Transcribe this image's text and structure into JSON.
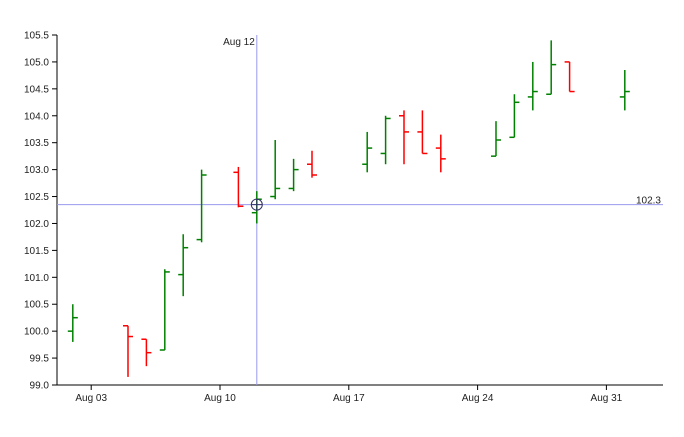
{
  "chart_data": {
    "type": "ohlc",
    "title": "",
    "xlabel": "",
    "ylabel": "",
    "ylim": [
      99.0,
      105.5
    ],
    "y_ticks": [
      "99.0",
      "99.5",
      "100.0",
      "100.5",
      "101.0",
      "101.5",
      "102.0",
      "102.5",
      "103.0",
      "103.5",
      "104.0",
      "104.5",
      "105.0",
      "105.5"
    ],
    "x_ticks": [
      {
        "label": "Aug 03",
        "day": 3
      },
      {
        "label": "Aug 10",
        "day": 10
      },
      {
        "label": "Aug 17",
        "day": 17
      },
      {
        "label": "Aug 24",
        "day": 24
      },
      {
        "label": "Aug 31",
        "day": 31
      }
    ],
    "x_range_days": [
      1,
      33
    ],
    "grid": false,
    "colors": {
      "up": "#008000",
      "down": "#ff0000",
      "crosshair": "#9999ee",
      "axis": "#000000"
    },
    "crosshair": {
      "x_label": "Aug 12",
      "x_day": 12,
      "y_label": "102.3",
      "y_value": 102.35
    },
    "bars": [
      {
        "day": 2,
        "open": 100.0,
        "high": 100.5,
        "low": 99.8,
        "close": 100.25
      },
      {
        "day": 5,
        "open": 100.1,
        "high": 100.1,
        "low": 99.15,
        "close": 99.9
      },
      {
        "day": 6,
        "open": 99.85,
        "high": 99.85,
        "low": 99.35,
        "close": 99.6
      },
      {
        "day": 7,
        "open": 99.65,
        "high": 101.15,
        "low": 99.65,
        "close": 101.1
      },
      {
        "day": 8,
        "open": 101.05,
        "high": 101.8,
        "low": 100.65,
        "close": 101.55
      },
      {
        "day": 9,
        "open": 101.7,
        "high": 103.0,
        "low": 101.65,
        "close": 102.9
      },
      {
        "day": 11,
        "open": 102.95,
        "high": 103.05,
        "low": 102.3,
        "close": 102.32
      },
      {
        "day": 12,
        "open": 102.2,
        "high": 102.6,
        "low": 102.0,
        "close": 102.45
      },
      {
        "day": 13,
        "open": 102.5,
        "high": 103.55,
        "low": 102.45,
        "close": 102.65
      },
      {
        "day": 14,
        "open": 102.65,
        "high": 103.2,
        "low": 102.6,
        "close": 103.0
      },
      {
        "day": 15,
        "open": 103.1,
        "high": 103.35,
        "low": 102.85,
        "close": 102.9
      },
      {
        "day": 18,
        "open": 103.1,
        "high": 103.7,
        "low": 102.95,
        "close": 103.4
      },
      {
        "day": 19,
        "open": 103.3,
        "high": 104.0,
        "low": 103.1,
        "close": 103.95
      },
      {
        "day": 20,
        "open": 104.0,
        "high": 104.1,
        "low": 103.1,
        "close": 103.7
      },
      {
        "day": 21,
        "open": 103.7,
        "high": 104.1,
        "low": 103.3,
        "close": 103.3
      },
      {
        "day": 22,
        "open": 103.4,
        "high": 103.65,
        "low": 102.95,
        "close": 103.2
      },
      {
        "day": 25,
        "open": 103.25,
        "high": 103.9,
        "low": 103.25,
        "close": 103.55
      },
      {
        "day": 26,
        "open": 103.6,
        "high": 104.4,
        "low": 103.6,
        "close": 104.25
      },
      {
        "day": 27,
        "open": 104.35,
        "high": 105.0,
        "low": 104.1,
        "close": 104.45
      },
      {
        "day": 28,
        "open": 104.4,
        "high": 105.4,
        "low": 104.4,
        "close": 104.95
      },
      {
        "day": 29,
        "open": 105.0,
        "high": 105.0,
        "low": 104.45,
        "close": 104.45
      },
      {
        "day": 32,
        "open": 104.35,
        "high": 104.85,
        "low": 104.1,
        "close": 104.45
      }
    ]
  }
}
